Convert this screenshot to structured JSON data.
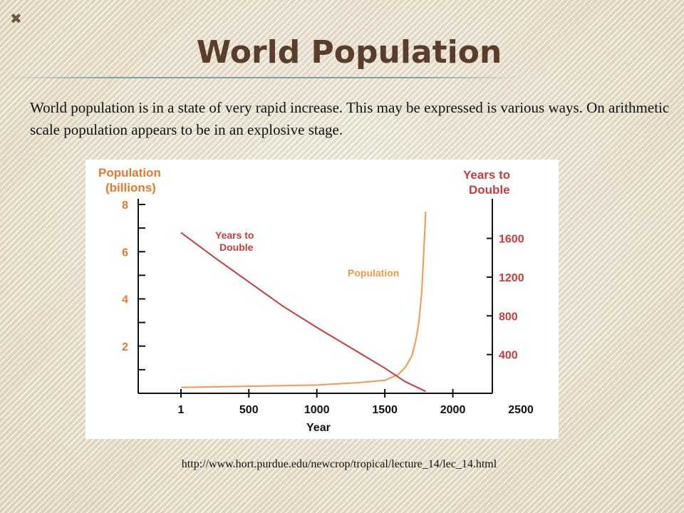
{
  "slide": {
    "marker": "✖",
    "title": "World Population",
    "intro": "World population is in a state of very rapid increase.  This may be expressed is various ways.  On arithmetic scale population appears to be in an explosive stage.",
    "source": "http://www.hort.purdue.edu/newcrop/tropical/lecture_14/lec_14.html"
  },
  "chart_data": {
    "type": "line",
    "xlabel": "Year",
    "ylabel_left": [
      "Population",
      "(billions)"
    ],
    "ylabel_right": [
      "Years to",
      "Double"
    ],
    "x_ticks": [
      "1",
      "500",
      "1000",
      "1500",
      "2000",
      "2500"
    ],
    "y_left_ticks": [
      "8",
      "6",
      "4",
      "2"
    ],
    "y_right_ticks": [
      "1600",
      "1200",
      "800",
      "400"
    ],
    "y_left_range": [
      0,
      8
    ],
    "y_right_range": [
      0,
      1950
    ],
    "x_range": [
      1,
      2500
    ],
    "series": [
      {
        "name": "Population",
        "axis": "left",
        "color": "#f29a4a",
        "label": "Population",
        "points": [
          [
            1,
            0.25
          ],
          [
            500,
            0.3
          ],
          [
            1000,
            0.35
          ],
          [
            1300,
            0.45
          ],
          [
            1500,
            0.55
          ],
          [
            1600,
            0.8
          ],
          [
            1650,
            1.1
          ],
          [
            1700,
            1.6
          ],
          [
            1730,
            2.3
          ],
          [
            1750,
            3.0
          ],
          [
            1770,
            4.2
          ],
          [
            1785,
            5.8
          ],
          [
            1795,
            7.0
          ],
          [
            1800,
            7.7
          ]
        ]
      },
      {
        "name": "Years to Double",
        "axis": "right",
        "color": "#cc3b3b",
        "label": [
          "Years to",
          "Double"
        ],
        "points": [
          [
            1,
            1660
          ],
          [
            250,
            1400
          ],
          [
            500,
            1150
          ],
          [
            750,
            900
          ],
          [
            1000,
            680
          ],
          [
            1250,
            470
          ],
          [
            1500,
            260
          ],
          [
            1650,
            120
          ],
          [
            1800,
            20
          ]
        ]
      }
    ],
    "grid": false,
    "legend": "inline-labels"
  }
}
